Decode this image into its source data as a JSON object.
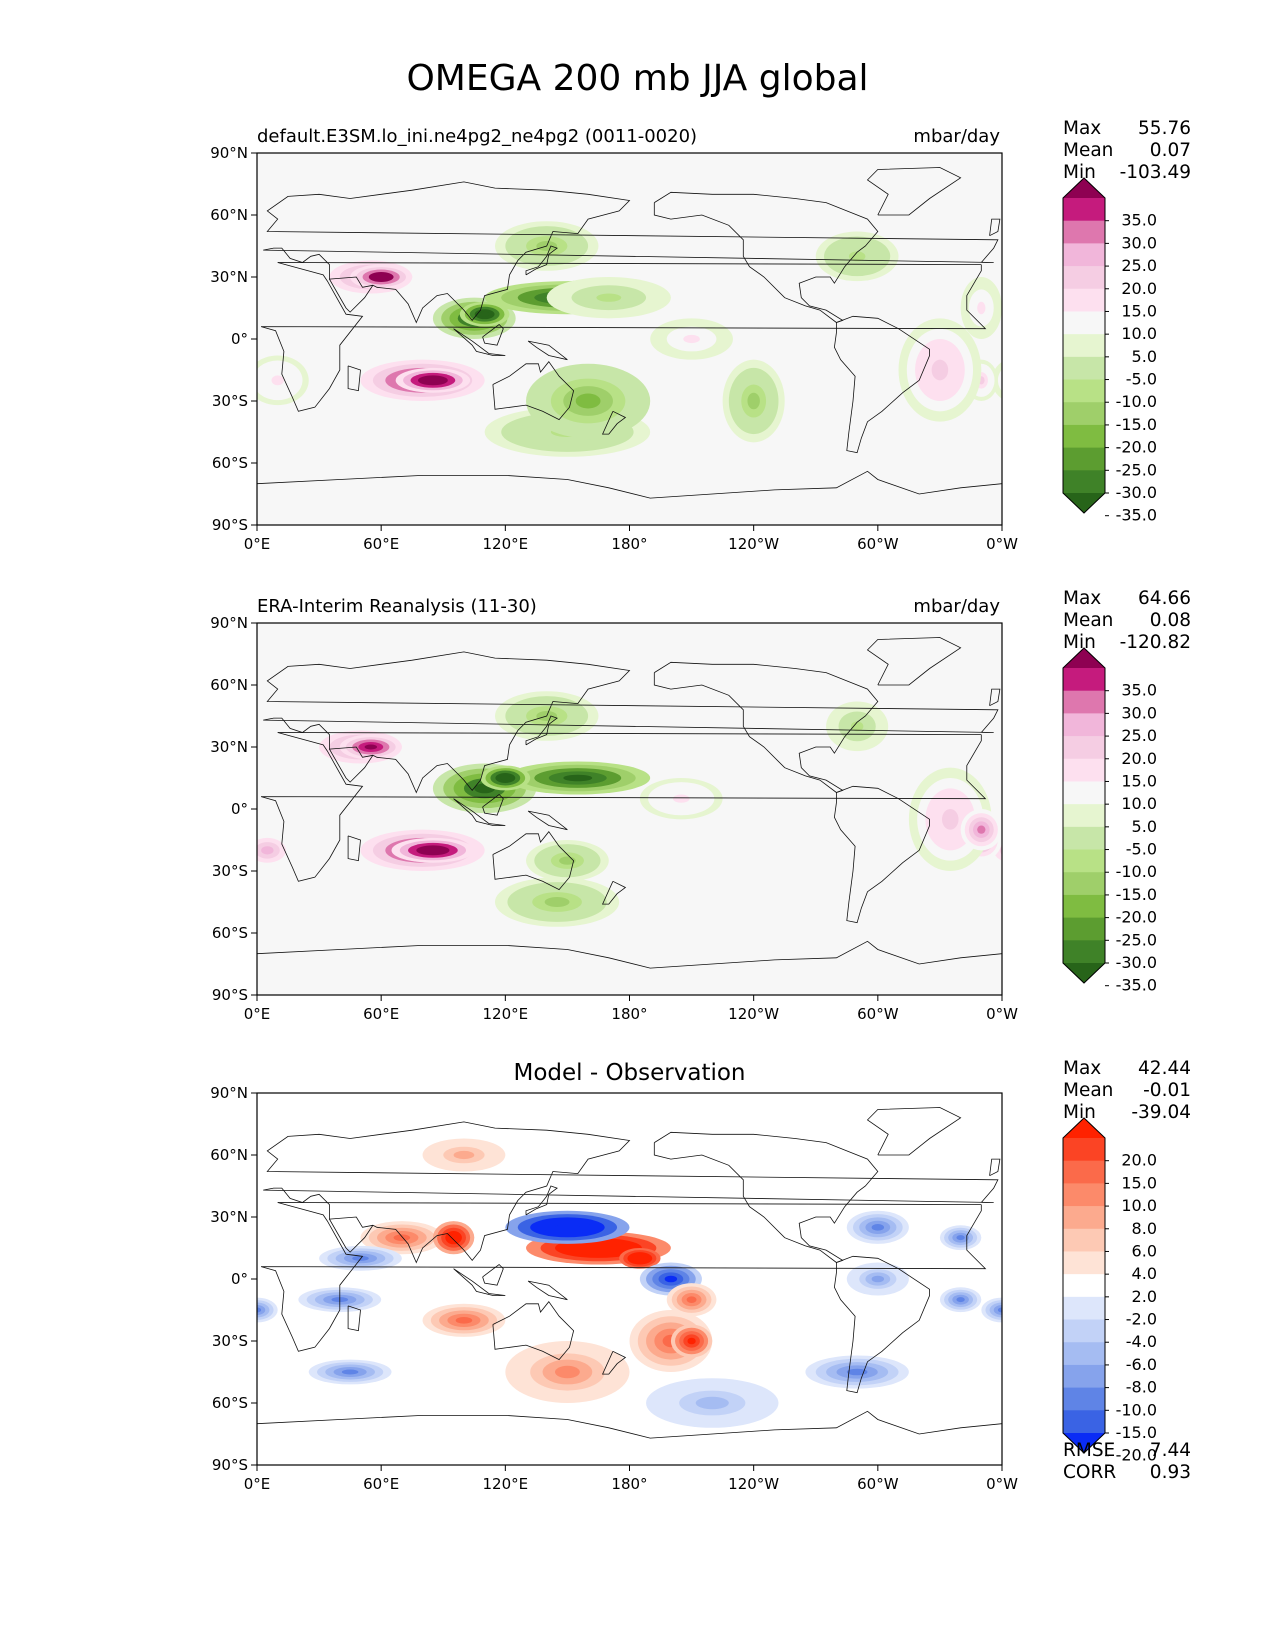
{
  "title": "OMEGA 200 mb JJA global",
  "panels": [
    {
      "id": "model",
      "title_left": "default.E3SM.lo_ini.ne4pg2_ne4pg2 (0011-0020)",
      "title_right": "mbar/day",
      "stats": {
        "max_label": "Max",
        "max": "55.76",
        "mean_label": "Mean",
        "mean": "0.07",
        "min_label": "Min",
        "min": "-103.49"
      },
      "colorbar": {
        "labels": [
          "35.0",
          "30.0",
          "25.0",
          "20.0",
          "15.0",
          "10.0",
          "5.0",
          "-5.0",
          "-10.0",
          "-15.0",
          "-20.0",
          "-25.0",
          "-30.0",
          "-35.0"
        ],
        "colors": [
          "#8e0152",
          "#c51b7d",
          "#de77ae",
          "#f1b6da",
          "#f5cde3",
          "#fde0ef",
          "#f7f7f7",
          "#e6f5d0",
          "#c7e6a8",
          "#b8e186",
          "#9fcf6a",
          "#7fbc41",
          "#5c9d30",
          "#3f8228",
          "#276419"
        ]
      }
    },
    {
      "id": "obs",
      "title_left": "ERA-Interim Reanalysis (11-30)",
      "title_right": "mbar/day",
      "stats": {
        "max_label": "Max",
        "max": "64.66",
        "mean_label": "Mean",
        "mean": "0.08",
        "min_label": "Min",
        "min": "-120.82"
      },
      "colorbar": {
        "labels": [
          "35.0",
          "30.0",
          "25.0",
          "20.0",
          "15.0",
          "10.0",
          "5.0",
          "-5.0",
          "-10.0",
          "-15.0",
          "-20.0",
          "-25.0",
          "-30.0",
          "-35.0"
        ],
        "colors": [
          "#8e0152",
          "#c51b7d",
          "#de77ae",
          "#f1b6da",
          "#f5cde3",
          "#fde0ef",
          "#f7f7f7",
          "#e6f5d0",
          "#c7e6a8",
          "#b8e186",
          "#9fcf6a",
          "#7fbc41",
          "#5c9d30",
          "#3f8228",
          "#276419"
        ]
      }
    },
    {
      "id": "diff",
      "title_center": "Model - Observation",
      "stats": {
        "max_label": "Max",
        "max": "42.44",
        "mean_label": "Mean",
        "mean": "-0.01",
        "min_label": "Min",
        "min": "-39.04"
      },
      "metrics": {
        "rmse_label": "RMSE",
        "rmse": "7.44",
        "corr_label": "CORR",
        "corr": "0.93"
      },
      "colorbar": {
        "labels": [
          "20.0",
          "15.0",
          "10.0",
          "8.0",
          "6.0",
          "4.0",
          "2.0",
          "-2.0",
          "-4.0",
          "-6.0",
          "-8.0",
          "-10.0",
          "-15.0",
          "-20.0"
        ],
        "colors": [
          "#ff2200",
          "#fb4424",
          "#fb6a4a",
          "#fc8a6a",
          "#fcaa8e",
          "#fdc9b4",
          "#fee3d6",
          "#ffffff",
          "#dde6fb",
          "#c2d2f7",
          "#a5bcf2",
          "#86a3ec",
          "#5f84e6",
          "#3a63e4",
          "#0a2cf5"
        ]
      }
    }
  ],
  "axes": {
    "x_ticks": [
      "0°E",
      "60°E",
      "120°E",
      "180°",
      "120°W",
      "60°W",
      "0°W"
    ],
    "y_ticks": [
      "90°N",
      "60°N",
      "30°N",
      "0°",
      "30°S",
      "60°S",
      "90°S"
    ]
  }
}
